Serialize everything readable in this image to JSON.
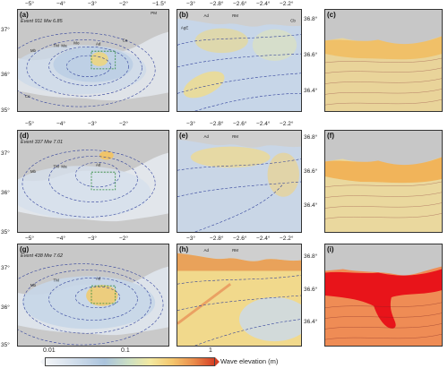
{
  "panels": {
    "a": {
      "label": "(a)",
      "event": "Event 911 Mw 6.85"
    },
    "b": {
      "label": "(b)"
    },
    "c": {
      "label": "(c)"
    },
    "d": {
      "label": "(d)",
      "event": "Event 337 Mw 7.01"
    },
    "e": {
      "label": "(e)"
    },
    "f": {
      "label": "(f)"
    },
    "g": {
      "label": "(g)",
      "event": "Event 438 Mw 7.62"
    },
    "h": {
      "label": "(h)"
    },
    "i": {
      "label": "(i)"
    }
  },
  "axes": {
    "left_lon_ticks": [
      "−5°",
      "−4°",
      "−3°",
      "−2°"
    ],
    "left_lat_ticks": [
      "37°",
      "36°",
      "35°"
    ],
    "mid_lon_ticks": [
      "−3°",
      "−2.8°",
      "−2.6°",
      "−2.4°",
      "−2.2°"
    ],
    "right_lat_ticks": [
      "36.8°",
      "36.6°",
      "36.4°"
    ],
    "corner_tick": "−1.5°"
  },
  "place_labels": {
    "overview": [
      "Mb",
      "TM",
      "Ma",
      "Mo",
      "Ad",
      "Ro",
      "Ca",
      "Mr",
      "PM",
      "Ce",
      "Ml",
      "Me"
    ],
    "zoom": [
      "Ad",
      "RM",
      "AgE",
      "Ro",
      "Gt",
      "Cb"
    ]
  },
  "colorbar": {
    "ticks": [
      "0.01",
      "0.1",
      "1"
    ],
    "title": "Wave elevation (m)",
    "scale": "log",
    "range_m": [
      0.01,
      1
    ],
    "colors": [
      "#f2f4f7",
      "#aac3dc",
      "#f3e9a0",
      "#ea8c4b",
      "#d64025"
    ]
  }
}
